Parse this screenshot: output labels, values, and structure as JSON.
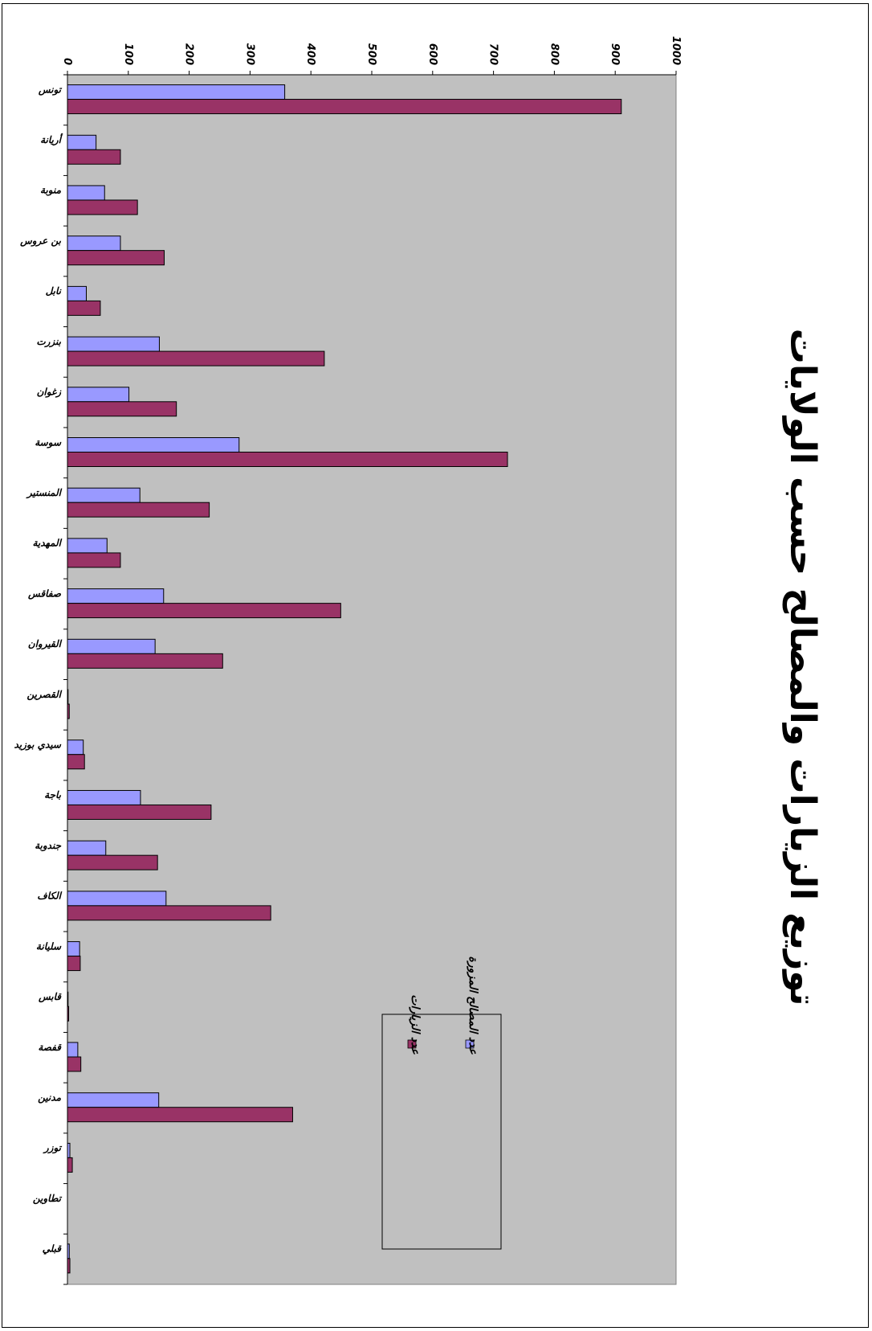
{
  "chart_data": {
    "type": "bar",
    "title": "توزيع الزيارات والمصالح حسب الولايات",
    "orientation": "rotated 90° clockwise (category axis runs top-to-bottom, value axis runs left-to-right)",
    "categories": [
      "تونس",
      "أريانة",
      "منوبة",
      "بن عروس",
      "نابل",
      "بنزرت",
      "زغوان",
      "سوسة",
      "المنستير",
      "المهدية",
      "صفاقس",
      "القيروان",
      "القصرين",
      "سيدي بوزيد",
      "باجة",
      "جندوبة",
      "الكاف",
      "سليانة",
      "قابس",
      "قفصة",
      "مدنين",
      "توزر",
      "تطاوين",
      "قبلي"
    ],
    "series": [
      {
        "name": "عدد المصالح المزورة",
        "color": "#9999ff",
        "values": [
          357,
          47,
          61,
          87,
          31,
          151,
          101,
          282,
          119,
          65,
          158,
          144,
          1,
          26,
          120,
          63,
          162,
          20,
          1,
          17,
          150,
          4,
          0,
          3
        ]
      },
      {
        "name": "عدد الزيارات",
        "color": "#993366",
        "values": [
          910,
          87,
          115,
          159,
          54,
          422,
          179,
          723,
          233,
          87,
          449,
          255,
          3,
          28,
          236,
          148,
          334,
          21,
          2,
          22,
          370,
          8,
          0,
          4
        ]
      }
    ],
    "value_axis": {
      "min": 0,
      "max": 1000,
      "ticks": [
        "0",
        "100",
        "200",
        "300",
        "400",
        "500",
        "600",
        "700",
        "800",
        "900",
        "1000"
      ]
    },
    "legend": {
      "placement": "bottom-center",
      "entries": [
        "عدد المصالح المزورة",
        "عدد الزيارات"
      ]
    },
    "plot_background": "#c0c0c0",
    "grid": false
  }
}
